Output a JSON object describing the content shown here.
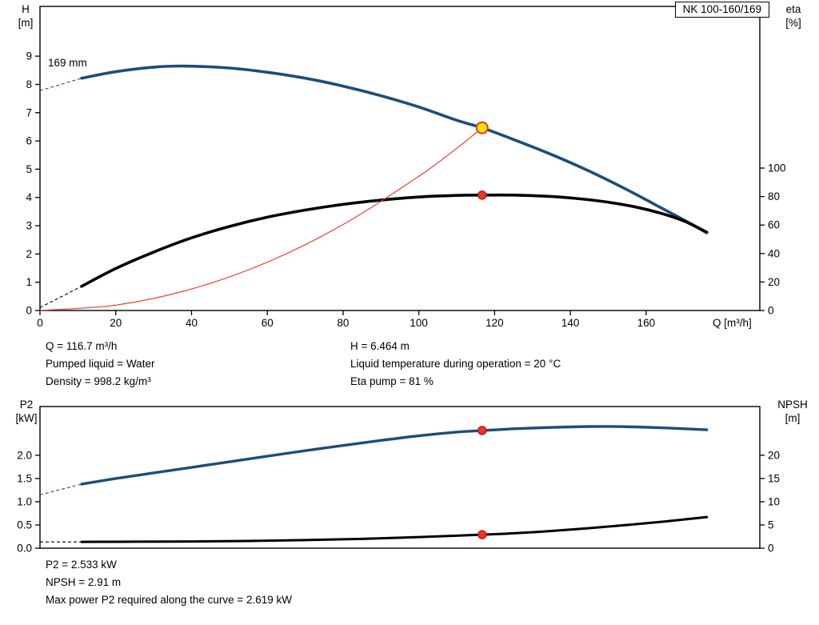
{
  "pump_model": "NK 100-160/169",
  "impeller_label": "169 mm",
  "colors": {
    "curve_blue": "#1b4e79",
    "curve_black": "#000000",
    "system_curve_red": "#e8352b",
    "marker_yellow_fill": "#ffe400",
    "marker_red": "#e8352b",
    "frame": "#000000"
  },
  "info_top": {
    "q": "Q = 116.7 m³/h",
    "pumped_liquid": "Pumped liquid = Water",
    "density": "Density = 998.2 kg/m³",
    "h": "H = 6.464 m",
    "liquid_temperature": "Liquid temperature during operation = 20 °C",
    "eta_pump": "Eta pump = 81 %"
  },
  "info_bottom": {
    "p2": "P2 = 2.533 kW",
    "npsh": "NPSH = 2.91 m",
    "max_p2": "Max power P2 required along the curve = 2.619 kW"
  },
  "chart_data": [
    {
      "type": "line",
      "name": "head-efficiency-vs-flow",
      "x_axis": {
        "label": "Q [m³/h]",
        "min": 0,
        "max": 190,
        "ticks": [
          0,
          20,
          40,
          60,
          80,
          100,
          120,
          140,
          160
        ],
        "decimals": 0
      },
      "y_left": {
        "label": "H [m]",
        "label_lines": [
          "H",
          "[m]"
        ],
        "min": 0,
        "max": 10.76,
        "ticks": [
          0,
          1,
          2,
          3,
          4,
          5,
          6,
          7,
          8,
          9
        ],
        "decimals": 0
      },
      "y_right": {
        "label": "eta [%]",
        "label_lines": [
          "eta",
          "[%]"
        ],
        "min": 0,
        "max": 213.5,
        "ticks": [
          0,
          20,
          40,
          60,
          80,
          100
        ],
        "decimals": 0
      },
      "grid": false,
      "series": [
        {
          "name": "pump-curve-169mm",
          "axis": "left",
          "color": "#1b4e79",
          "width": 3.6,
          "dash_lead": [
            [
              0,
              7.78
            ],
            [
              6,
              8.02
            ],
            [
              11,
              8.22
            ]
          ],
          "points": [
            [
              11,
              8.22
            ],
            [
              20,
              8.45
            ],
            [
              30,
              8.61
            ],
            [
              38,
              8.65
            ],
            [
              50,
              8.58
            ],
            [
              60,
              8.43
            ],
            [
              70,
              8.22
            ],
            [
              80,
              7.94
            ],
            [
              90,
              7.6
            ],
            [
              100,
              7.2
            ],
            [
              110,
              6.73
            ],
            [
              116.7,
              6.464
            ],
            [
              125,
              6.05
            ],
            [
              135,
              5.52
            ],
            [
              145,
              4.93
            ],
            [
              155,
              4.27
            ],
            [
              163,
              3.7
            ],
            [
              170,
              3.2
            ],
            [
              176,
              2.75
            ]
          ]
        },
        {
          "name": "efficiency-curve",
          "axis": "right",
          "color": "#000000",
          "width": 3.6,
          "dash_lead": [
            [
              0,
              2
            ],
            [
              11,
              17
            ]
          ],
          "points": [
            [
              11,
              17
            ],
            [
              20,
              29.5
            ],
            [
              30,
              41
            ],
            [
              40,
              51
            ],
            [
              50,
              59
            ],
            [
              60,
              65.5
            ],
            [
              70,
              70.5
            ],
            [
              80,
              74.5
            ],
            [
              90,
              77.5
            ],
            [
              100,
              79.7
            ],
            [
              110,
              80.8
            ],
            [
              116.7,
              81
            ],
            [
              125,
              81
            ],
            [
              133,
              80.3
            ],
            [
              141,
              78.8
            ],
            [
              149,
              76.4
            ],
            [
              157,
              72.8
            ],
            [
              164,
              68.2
            ],
            [
              170,
              62.8
            ],
            [
              176,
              55
            ]
          ]
        },
        {
          "name": "system-curve",
          "axis": "left",
          "color": "#e8352b",
          "width": 1.1,
          "points": [
            [
              0,
              0
            ],
            [
              20,
              0.19
            ],
            [
              40,
              0.76
            ],
            [
              60,
              1.71
            ],
            [
              80,
              3.04
            ],
            [
              100,
              4.75
            ],
            [
              110,
              5.74
            ],
            [
              116.7,
              6.464
            ]
          ]
        }
      ],
      "markers": [
        {
          "name": "duty-point-head",
          "axis": "left",
          "x": 116.7,
          "y": 6.464,
          "r": 7,
          "fill": "#ffe400",
          "stroke": "#e8352b",
          "stroke_width": 2
        },
        {
          "name": "duty-point-eta",
          "axis": "right",
          "x": 116.7,
          "y": 81,
          "r": 5.2,
          "fill": "#e8352b",
          "stroke": "#b00000",
          "stroke_width": 1
        }
      ]
    },
    {
      "type": "line",
      "name": "power-npsh-vs-flow",
      "x_axis": {
        "label": "",
        "min": 0,
        "max": 190,
        "ticks": [],
        "decimals": 0
      },
      "y_left": {
        "label": "P2 [kW]",
        "label_lines": [
          "P2",
          "[kW]"
        ],
        "min": 0,
        "max": 3.05,
        "ticks": [
          0,
          0.5,
          1,
          1.5,
          2
        ],
        "decimals": 1
      },
      "y_right": {
        "label": "NPSH [m]",
        "label_lines": [
          "NPSH",
          "[m]"
        ],
        "min": 0,
        "max": 30.5,
        "ticks": [
          0,
          5,
          10,
          15,
          20
        ],
        "decimals": 0
      },
      "grid": false,
      "series": [
        {
          "name": "power-p2-curve",
          "axis": "left",
          "color": "#1b4e79",
          "width": 3.4,
          "dash_lead": [
            [
              0,
              1.15
            ],
            [
              11,
              1.38
            ]
          ],
          "points": [
            [
              11,
              1.38
            ],
            [
              20,
              1.5
            ],
            [
              30,
              1.62
            ],
            [
              40,
              1.74
            ],
            [
              50,
              1.86
            ],
            [
              60,
              1.98
            ],
            [
              70,
              2.1
            ],
            [
              80,
              2.21
            ],
            [
              90,
              2.32
            ],
            [
              100,
              2.42
            ],
            [
              110,
              2.5
            ],
            [
              116.7,
              2.533
            ],
            [
              125,
              2.57
            ],
            [
              135,
              2.6
            ],
            [
              145,
              2.619
            ],
            [
              155,
              2.615
            ],
            [
              165,
              2.59
            ],
            [
              172,
              2.565
            ],
            [
              176,
              2.55
            ]
          ]
        },
        {
          "name": "npsh-curve",
          "axis": "right",
          "color": "#000000",
          "width": 3,
          "dash_lead": [
            [
              0,
              1.35
            ],
            [
              11,
              1.35
            ]
          ],
          "points": [
            [
              11,
              1.35
            ],
            [
              25,
              1.4
            ],
            [
              40,
              1.45
            ],
            [
              55,
              1.55
            ],
            [
              70,
              1.75
            ],
            [
              85,
              2.0
            ],
            [
              100,
              2.4
            ],
            [
              110,
              2.7
            ],
            [
              116.7,
              2.91
            ],
            [
              125,
              3.2
            ],
            [
              135,
              3.7
            ],
            [
              145,
              4.3
            ],
            [
              155,
              5.0
            ],
            [
              165,
              5.75
            ],
            [
              172,
              6.35
            ],
            [
              176,
              6.7
            ]
          ]
        }
      ],
      "markers": [
        {
          "name": "duty-point-p2",
          "axis": "left",
          "x": 116.7,
          "y": 2.533,
          "r": 5.2,
          "fill": "#e8352b",
          "stroke": "#b00000",
          "stroke_width": 1
        },
        {
          "name": "duty-point-npsh",
          "axis": "right",
          "x": 116.7,
          "y": 2.91,
          "r": 5.2,
          "fill": "#e8352b",
          "stroke": "#b00000",
          "stroke_width": 1
        }
      ]
    }
  ]
}
